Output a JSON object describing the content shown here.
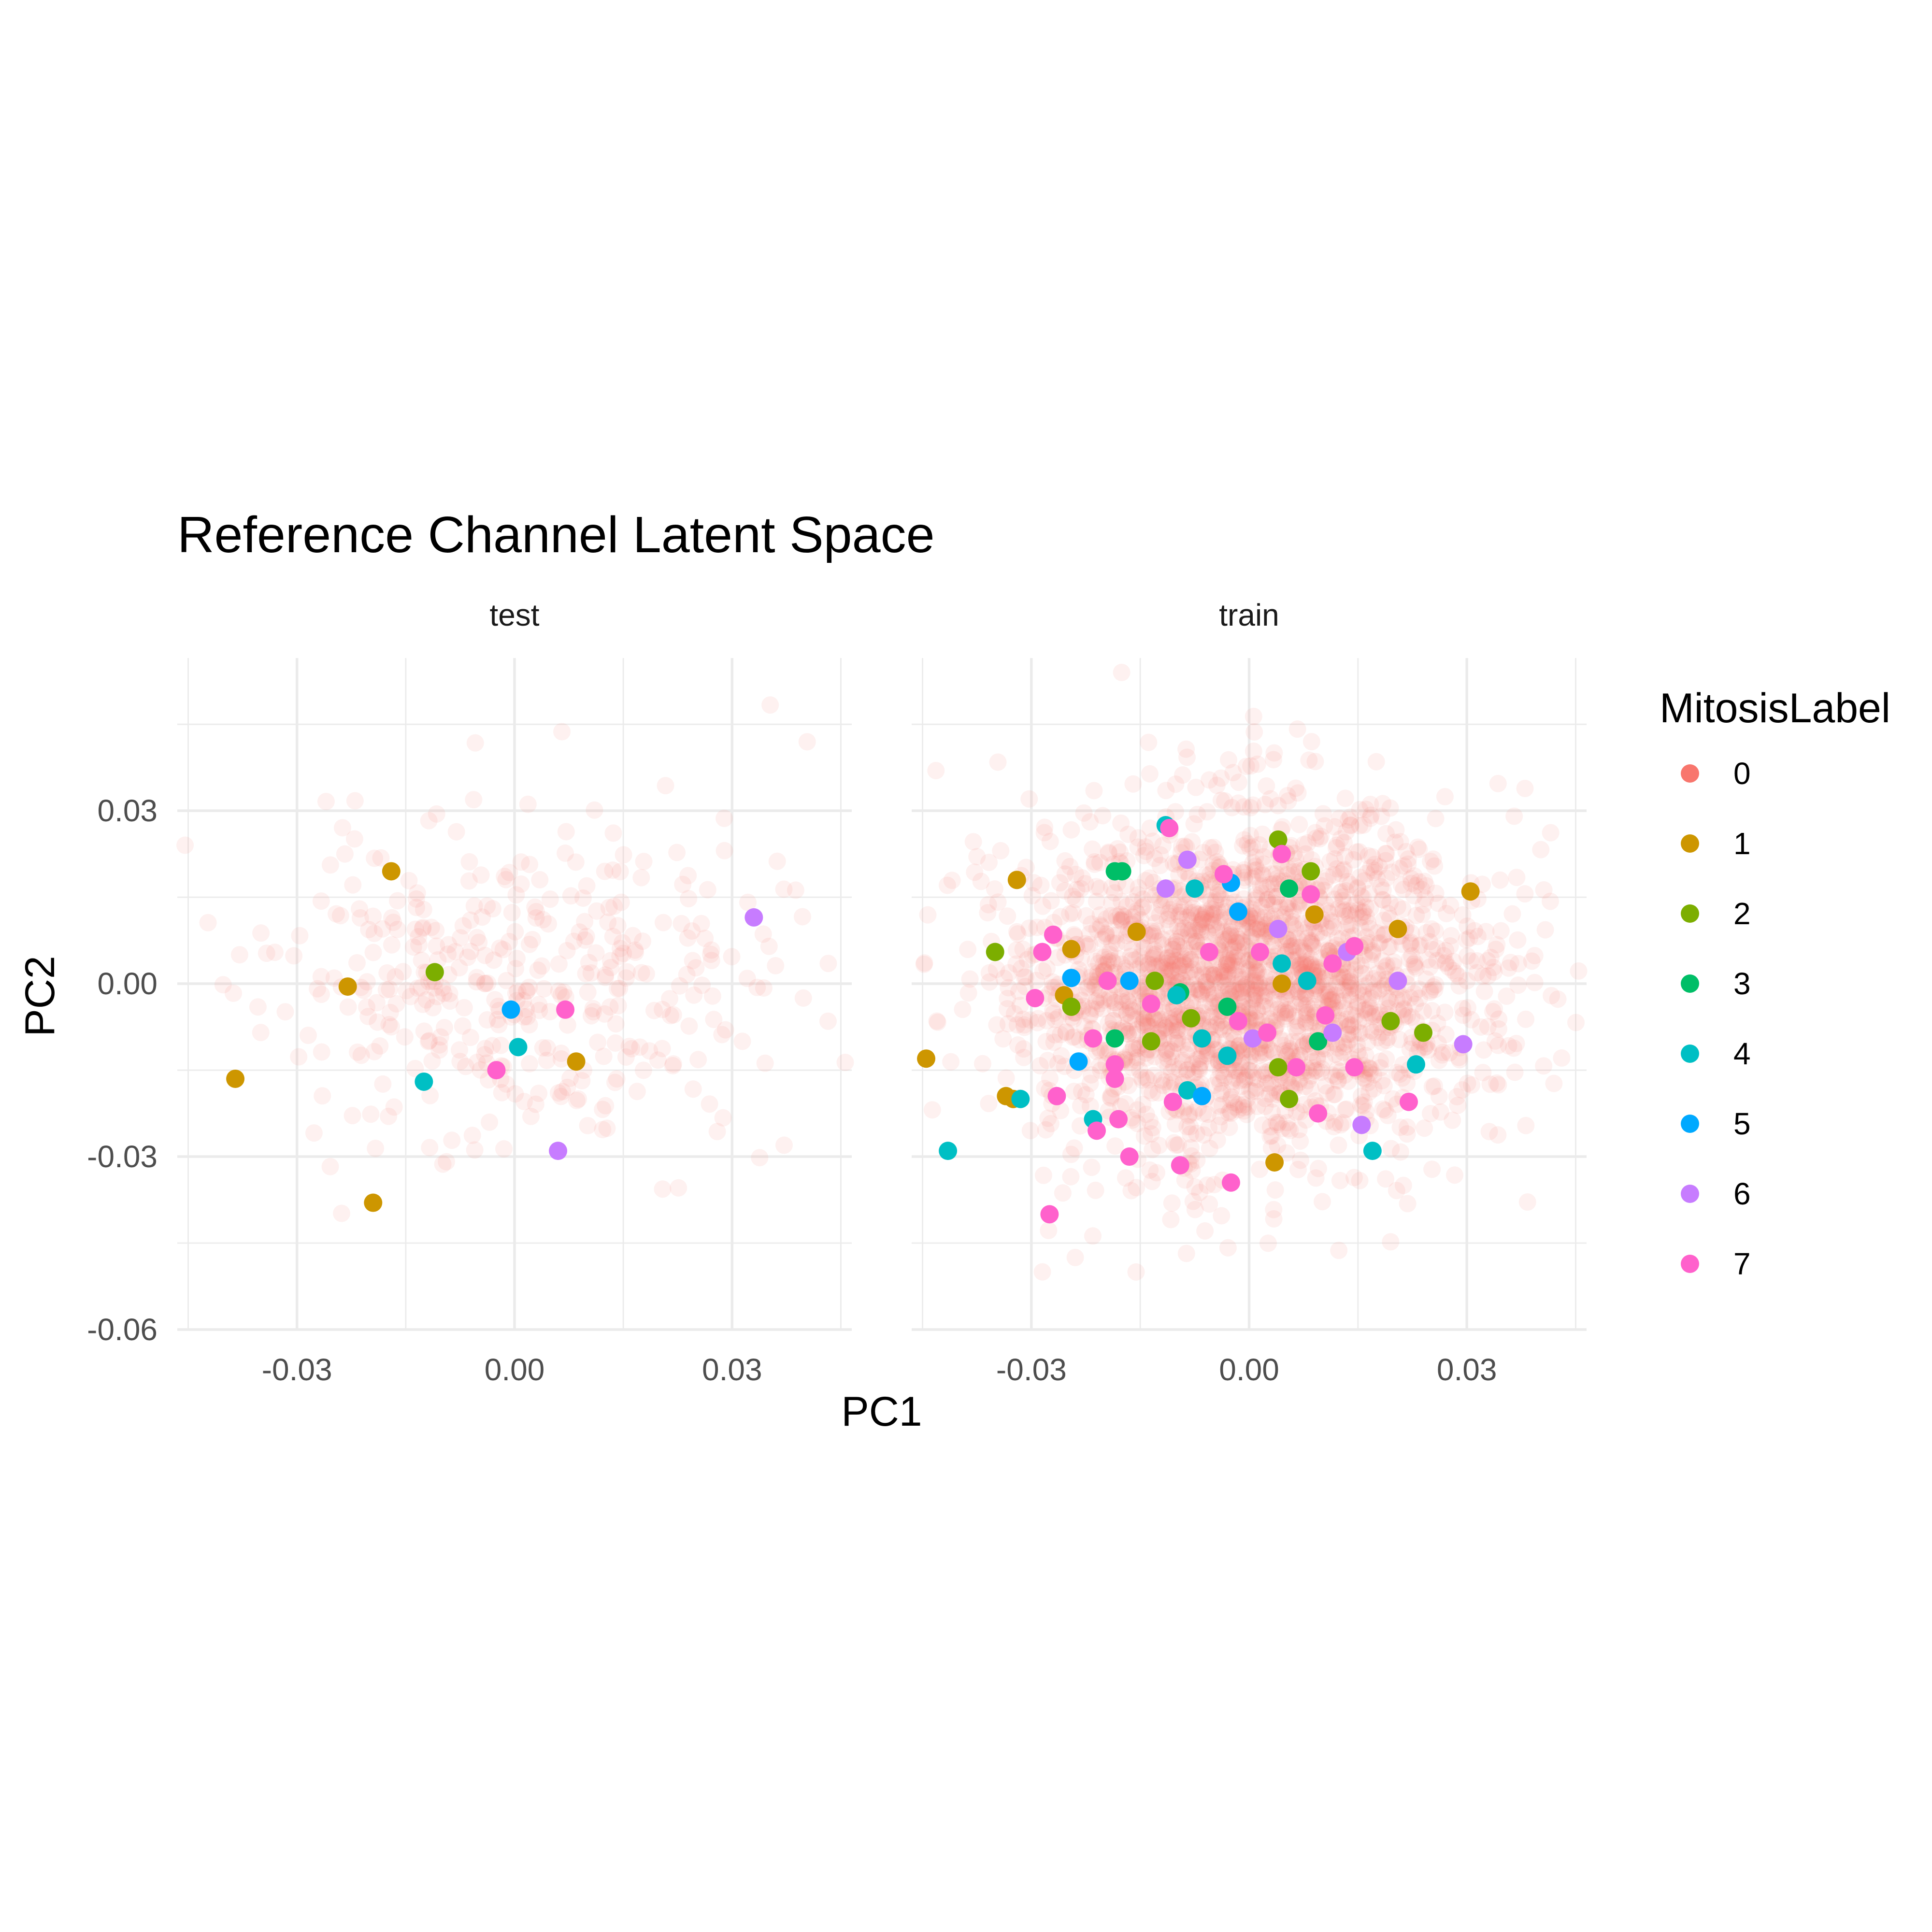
{
  "chart_data": {
    "type": "scatter",
    "title": "Reference Channel Latent Space",
    "xlabel": "PC1",
    "ylabel": "PC2",
    "xlim": [
      -0.0465,
      0.0465
    ],
    "ylim": [
      -0.06,
      0.0565
    ],
    "x_ticks": [
      -0.03,
      0.0,
      0.03
    ],
    "x_tick_labels": [
      "-0.03",
      "0.00",
      "0.03"
    ],
    "y_ticks": [
      -0.06,
      -0.03,
      0.0,
      0.03
    ],
    "y_tick_labels": [
      "-0.06",
      "-0.03",
      "0.00",
      "0.03"
    ],
    "grid": true,
    "legend": {
      "title": "MitosisLabel",
      "position": "right",
      "entries": [
        "0",
        "1",
        "2",
        "3",
        "4",
        "5",
        "6",
        "7"
      ],
      "colors": [
        "#F8766D",
        "#CD9600",
        "#7CAE00",
        "#00BE67",
        "#00BFC4",
        "#00A9FF",
        "#C77CFF",
        "#FF61CC"
      ]
    },
    "background_label": "0",
    "background_alpha": 0.1,
    "panels": [
      {
        "label": "test",
        "background_count": 400,
        "background_seed": 11,
        "background_sd": [
          0.017,
          0.014
        ],
        "points": [
          {
            "label": "1",
            "x": -0.017,
            "y": 0.0195
          },
          {
            "label": "1",
            "x": -0.023,
            "y": -0.0005
          },
          {
            "label": "1",
            "x": -0.0385,
            "y": -0.0165
          },
          {
            "label": "1",
            "x": -0.0195,
            "y": -0.038
          },
          {
            "label": "1",
            "x": 0.0085,
            "y": -0.0135
          },
          {
            "label": "2",
            "x": -0.011,
            "y": 0.002
          },
          {
            "label": "4",
            "x": -0.0125,
            "y": -0.017
          },
          {
            "label": "4",
            "x": 0.0005,
            "y": -0.011
          },
          {
            "label": "5",
            "x": -0.0005,
            "y": -0.0045
          },
          {
            "label": "6",
            "x": 0.033,
            "y": 0.0115
          },
          {
            "label": "6",
            "x": 0.006,
            "y": -0.029
          },
          {
            "label": "7",
            "x": 0.007,
            "y": -0.0045
          },
          {
            "label": "7",
            "x": -0.0025,
            "y": -0.015
          }
        ]
      },
      {
        "label": "train",
        "background_count": 2400,
        "background_seed": 29,
        "background_sd": [
          0.016,
          0.015
        ],
        "points": [
          {
            "label": "1",
            "x": -0.032,
            "y": 0.018
          },
          {
            "label": "1",
            "x": 0.0305,
            "y": 0.016
          },
          {
            "label": "1",
            "x": -0.0445,
            "y": -0.013
          },
          {
            "label": "1",
            "x": -0.0335,
            "y": -0.0195
          },
          {
            "label": "1",
            "x": -0.0325,
            "y": -0.02
          },
          {
            "label": "1",
            "x": 0.0035,
            "y": -0.031
          },
          {
            "label": "1",
            "x": 0.0205,
            "y": 0.0095
          },
          {
            "label": "1",
            "x": -0.0245,
            "y": 0.006
          },
          {
            "label": "1",
            "x": -0.0155,
            "y": 0.009
          },
          {
            "label": "1",
            "x": 0.009,
            "y": 0.012
          },
          {
            "label": "1",
            "x": -0.0255,
            "y": -0.002
          },
          {
            "label": "1",
            "x": 0.0045,
            "y": 0.0
          },
          {
            "label": "2",
            "x": -0.035,
            "y": 0.0055
          },
          {
            "label": "2",
            "x": 0.004,
            "y": 0.025
          },
          {
            "label": "2",
            "x": 0.0085,
            "y": 0.0195
          },
          {
            "label": "2",
            "x": 0.024,
            "y": -0.0085
          },
          {
            "label": "2",
            "x": 0.0195,
            "y": -0.0065
          },
          {
            "label": "2",
            "x": -0.013,
            "y": 0.0005
          },
          {
            "label": "2",
            "x": -0.0135,
            "y": -0.01
          },
          {
            "label": "2",
            "x": 0.004,
            "y": -0.0145
          },
          {
            "label": "2",
            "x": 0.0055,
            "y": -0.02
          },
          {
            "label": "2",
            "x": -0.008,
            "y": -0.006
          },
          {
            "label": "2",
            "x": -0.0245,
            "y": -0.004
          },
          {
            "label": "3",
            "x": -0.0185,
            "y": 0.0195
          },
          {
            "label": "3",
            "x": -0.0175,
            "y": 0.0195
          },
          {
            "label": "3",
            "x": 0.0095,
            "y": -0.01
          },
          {
            "label": "3",
            "x": -0.0095,
            "y": -0.0015
          },
          {
            "label": "3",
            "x": 0.0055,
            "y": 0.0165
          },
          {
            "label": "3",
            "x": -0.0185,
            "y": -0.0095
          },
          {
            "label": "3",
            "x": -0.003,
            "y": -0.004
          },
          {
            "label": "4",
            "x": -0.0115,
            "y": 0.0275
          },
          {
            "label": "4",
            "x": -0.0075,
            "y": 0.0165
          },
          {
            "label": "4",
            "x": -0.0415,
            "y": -0.029
          },
          {
            "label": "4",
            "x": -0.0315,
            "y": -0.02
          },
          {
            "label": "4",
            "x": -0.0215,
            "y": -0.0235
          },
          {
            "label": "4",
            "x": 0.017,
            "y": -0.029
          },
          {
            "label": "4",
            "x": 0.023,
            "y": -0.014
          },
          {
            "label": "4",
            "x": -0.003,
            "y": -0.0125
          },
          {
            "label": "4",
            "x": 0.0045,
            "y": 0.0035
          },
          {
            "label": "4",
            "x": -0.0065,
            "y": -0.0095
          },
          {
            "label": "4",
            "x": -0.01,
            "y": -0.002
          },
          {
            "label": "4",
            "x": 0.008,
            "y": 0.0005
          },
          {
            "label": "4",
            "x": -0.0085,
            "y": -0.0185
          },
          {
            "label": "5",
            "x": -0.0235,
            "y": -0.0135
          },
          {
            "label": "5",
            "x": -0.0165,
            "y": 0.0005
          },
          {
            "label": "5",
            "x": -0.0025,
            "y": 0.0175
          },
          {
            "label": "5",
            "x": -0.0065,
            "y": -0.0195
          },
          {
            "label": "5",
            "x": -0.0245,
            "y": 0.001
          },
          {
            "label": "5",
            "x": -0.0015,
            "y": 0.0125
          },
          {
            "label": "6",
            "x": -0.0085,
            "y": 0.0215
          },
          {
            "label": "6",
            "x": -0.0115,
            "y": 0.0165
          },
          {
            "label": "6",
            "x": 0.0155,
            "y": -0.0245
          },
          {
            "label": "6",
            "x": 0.0295,
            "y": -0.0105
          },
          {
            "label": "6",
            "x": 0.004,
            "y": 0.0095
          },
          {
            "label": "6",
            "x": 0.0135,
            "y": 0.0055
          },
          {
            "label": "6",
            "x": 0.0205,
            "y": 0.0005
          },
          {
            "label": "6",
            "x": 0.0005,
            "y": -0.0095
          },
          {
            "label": "6",
            "x": 0.0115,
            "y": -0.0085
          },
          {
            "label": "7",
            "x": -0.011,
            "y": 0.027
          },
          {
            "label": "7",
            "x": -0.027,
            "y": 0.0085
          },
          {
            "label": "7",
            "x": -0.0285,
            "y": 0.0055
          },
          {
            "label": "7",
            "x": -0.0295,
            "y": -0.0025
          },
          {
            "label": "7",
            "x": -0.0265,
            "y": -0.0195
          },
          {
            "label": "7",
            "x": -0.021,
            "y": -0.0255
          },
          {
            "label": "7",
            "x": -0.018,
            "y": -0.0235
          },
          {
            "label": "7",
            "x": -0.0165,
            "y": -0.03
          },
          {
            "label": "7",
            "x": -0.0095,
            "y": -0.0315
          },
          {
            "label": "7",
            "x": -0.0275,
            "y": -0.04
          },
          {
            "label": "7",
            "x": -0.0025,
            "y": -0.0345
          },
          {
            "label": "7",
            "x": 0.0095,
            "y": -0.0225
          },
          {
            "label": "7",
            "x": 0.022,
            "y": -0.0205
          },
          {
            "label": "7",
            "x": -0.0185,
            "y": -0.0165
          },
          {
            "label": "7",
            "x": -0.0105,
            "y": -0.0205
          },
          {
            "label": "7",
            "x": 0.0145,
            "y": -0.0145
          },
          {
            "label": "7",
            "x": 0.0045,
            "y": 0.0225
          },
          {
            "label": "7",
            "x": 0.0085,
            "y": 0.0155
          },
          {
            "label": "7",
            "x": 0.0145,
            "y": 0.0065
          },
          {
            "label": "7",
            "x": -0.0035,
            "y": 0.019
          },
          {
            "label": "7",
            "x": -0.0195,
            "y": 0.0005
          },
          {
            "label": "7",
            "x": -0.0135,
            "y": -0.0035
          },
          {
            "label": "7",
            "x": -0.0215,
            "y": -0.0095
          },
          {
            "label": "7",
            "x": 0.0015,
            "y": 0.0055
          },
          {
            "label": "7",
            "x": 0.0025,
            "y": -0.0085
          },
          {
            "label": "7",
            "x": -0.0055,
            "y": 0.0055
          },
          {
            "label": "7",
            "x": 0.0115,
            "y": 0.0035
          },
          {
            "label": "7",
            "x": 0.0065,
            "y": -0.0145
          },
          {
            "label": "7",
            "x": -0.0185,
            "y": -0.014
          },
          {
            "label": "7",
            "x": 0.0105,
            "y": -0.0055
          },
          {
            "label": "7",
            "x": -0.0015,
            "y": -0.0065
          }
        ]
      }
    ]
  }
}
